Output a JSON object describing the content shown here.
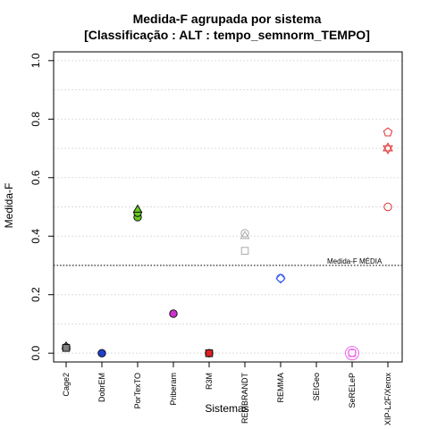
{
  "chart_data": {
    "type": "scatter",
    "title_line1": "Medida-F agrupada por sistema",
    "title_line2": "[Classificação : ALT : tempo_semnorm_TEMPO]",
    "xlabel": "Sistemas",
    "ylabel": "Medida-F",
    "ylim": [
      0,
      1.0
    ],
    "yticks": [
      "0.0",
      "0.2",
      "0.4",
      "0.6",
      "0.8",
      "1.0"
    ],
    "grid": "horizontal dotted",
    "categories": [
      "Cage2",
      "DobrEM",
      "PorTexTO",
      "Priberam",
      "R3M",
      "REMBRANDT",
      "REMMA",
      "SEIGeo",
      "SeRELeP",
      "XIP-L2F/Xerox"
    ],
    "reference": {
      "label": "Medida-F MÉDIA",
      "value": 0.3
    },
    "series": [
      {
        "category": "Cage2",
        "color": "#7f7f7f",
        "filled": true,
        "points": [
          {
            "y": 0.02,
            "shape": "circle"
          },
          {
            "y": 0.022,
            "shape": "triangle"
          },
          {
            "y": 0.018,
            "shape": "square"
          }
        ]
      },
      {
        "category": "DobrEM",
        "color": "#1f3fd1",
        "filled": true,
        "points": [
          {
            "y": 0.0,
            "shape": "circle"
          }
        ]
      },
      {
        "category": "PorTexTO",
        "color": "#66cc22",
        "filled": true,
        "points": [
          {
            "y": 0.465,
            "shape": "circle"
          },
          {
            "y": 0.48,
            "shape": "circle"
          },
          {
            "y": 0.49,
            "shape": "triangle"
          }
        ]
      },
      {
        "category": "Priberam",
        "color": "#cc33cc",
        "filled": true,
        "points": [
          {
            "y": 0.135,
            "shape": "circle"
          }
        ]
      },
      {
        "category": "R3M",
        "color": "#dd2222",
        "filled": true,
        "points": [
          {
            "y": 0.0,
            "shape": "circle"
          },
          {
            "y": 0.0,
            "shape": "square"
          }
        ]
      },
      {
        "category": "REMBRANDT",
        "color": "#aaaaaa",
        "filled": false,
        "points": [
          {
            "y": 0.41,
            "shape": "circle"
          },
          {
            "y": 0.4,
            "shape": "triangle"
          },
          {
            "y": 0.35,
            "shape": "square"
          }
        ]
      },
      {
        "category": "REMMA",
        "color": "#3355ee",
        "filled": false,
        "points": [
          {
            "y": 0.257,
            "shape": "circle"
          },
          {
            "y": 0.255,
            "shape": "diamond"
          }
        ]
      },
      {
        "category": "SEIGeo",
        "color": "#000000",
        "filled": false,
        "points": []
      },
      {
        "category": "SeRELeP",
        "color": "#ee66ee",
        "filled": false,
        "points": [
          {
            "y": 0.0,
            "shape": "circle-large"
          },
          {
            "y": 0.0,
            "shape": "square"
          },
          {
            "y": 0.002,
            "shape": "circle"
          }
        ]
      },
      {
        "category": "XIP-L2F/Xerox",
        "color": "#dd3333",
        "filled": false,
        "points": [
          {
            "y": 0.755,
            "shape": "pentagon"
          },
          {
            "y": 0.7,
            "shape": "star"
          },
          {
            "y": 0.5,
            "shape": "circle"
          }
        ]
      }
    ]
  }
}
